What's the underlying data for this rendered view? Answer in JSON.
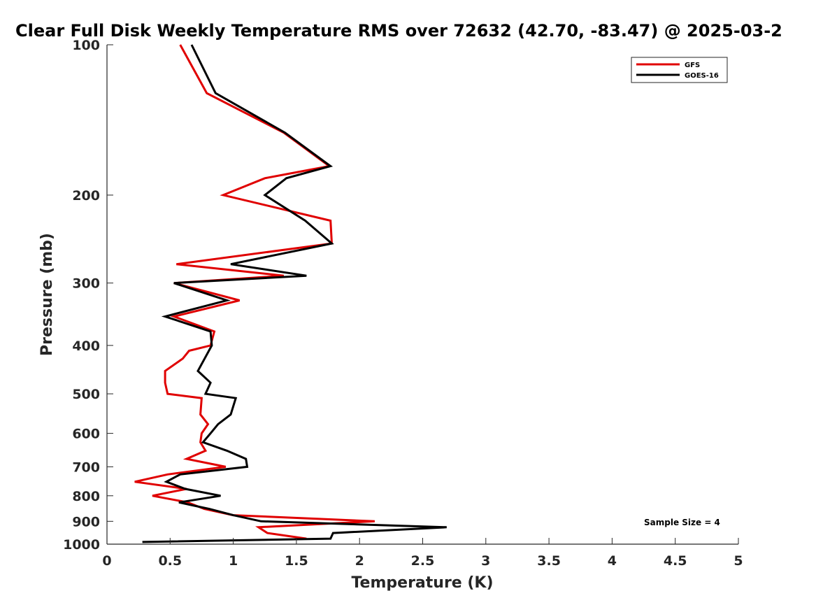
{
  "chart_data": {
    "type": "line",
    "title": "Clear Full Disk Weekly Temperature RMS over 72632 (42.70, -83.47) @ 2025-03-2",
    "xlabel": "Temperature (K)",
    "ylabel": "Pressure (mb)",
    "xlim": [
      0,
      5
    ],
    "ylim": [
      1000,
      100
    ],
    "yscale": "log",
    "x_ticks": [
      "0",
      "0.5",
      "1",
      "1.5",
      "2",
      "2.5",
      "3",
      "3.5",
      "4",
      "4.5",
      "5"
    ],
    "x_tick_values": [
      0,
      0.5,
      1,
      1.5,
      2,
      2.5,
      3,
      3.5,
      4,
      4.5,
      5
    ],
    "y_ticks": [
      "100",
      "200",
      "300",
      "400",
      "500",
      "600",
      "700",
      "800",
      "900",
      "1000"
    ],
    "y_tick_values": [
      100,
      200,
      300,
      400,
      500,
      600,
      700,
      800,
      900,
      1000
    ],
    "grid": false,
    "legend": {
      "position": "top-right"
    },
    "annotation": "Sample Size = 4",
    "series": [
      {
        "name": "GFS",
        "color": "#e00000",
        "points": [
          [
            0.58,
            100
          ],
          [
            0.79,
            125
          ],
          [
            1.4,
            150
          ],
          [
            1.76,
            175
          ],
          [
            1.25,
            185
          ],
          [
            0.92,
            200
          ],
          [
            1.77,
            225
          ],
          [
            1.78,
            250
          ],
          [
            0.55,
            275
          ],
          [
            1.4,
            290
          ],
          [
            0.53,
            300
          ],
          [
            1.05,
            325
          ],
          [
            0.53,
            350
          ],
          [
            0.85,
            375
          ],
          [
            0.82,
            400
          ],
          [
            0.65,
            410
          ],
          [
            0.6,
            425
          ],
          [
            0.46,
            450
          ],
          [
            0.46,
            475
          ],
          [
            0.48,
            500
          ],
          [
            0.75,
            510
          ],
          [
            0.74,
            550
          ],
          [
            0.8,
            575
          ],
          [
            0.75,
            600
          ],
          [
            0.74,
            625
          ],
          [
            0.78,
            650
          ],
          [
            0.63,
            675
          ],
          [
            0.94,
            700
          ],
          [
            0.48,
            725
          ],
          [
            0.22,
            750
          ],
          [
            0.63,
            775
          ],
          [
            0.36,
            800
          ],
          [
            0.64,
            825
          ],
          [
            0.77,
            850
          ],
          [
            1.0,
            875
          ],
          [
            2.12,
            900
          ],
          [
            1.2,
            925
          ],
          [
            1.27,
            950
          ],
          [
            1.58,
            975
          ]
        ]
      },
      {
        "name": "GOES-16",
        "color": "#000000",
        "points": [
          [
            0.67,
            100
          ],
          [
            0.86,
            125
          ],
          [
            1.41,
            150
          ],
          [
            1.77,
            175
          ],
          [
            1.42,
            185
          ],
          [
            1.25,
            200
          ],
          [
            1.57,
            225
          ],
          [
            1.78,
            250
          ],
          [
            0.98,
            275
          ],
          [
            1.58,
            290
          ],
          [
            0.53,
            300
          ],
          [
            0.95,
            325
          ],
          [
            0.46,
            350
          ],
          [
            0.82,
            375
          ],
          [
            0.83,
            400
          ],
          [
            0.72,
            450
          ],
          [
            0.82,
            475
          ],
          [
            0.78,
            500
          ],
          [
            1.02,
            510
          ],
          [
            0.98,
            550
          ],
          [
            0.88,
            575
          ],
          [
            0.82,
            600
          ],
          [
            0.76,
            625
          ],
          [
            0.95,
            650
          ],
          [
            1.1,
            675
          ],
          [
            1.11,
            700
          ],
          [
            0.58,
            725
          ],
          [
            0.47,
            750
          ],
          [
            0.62,
            775
          ],
          [
            0.9,
            800
          ],
          [
            0.57,
            825
          ],
          [
            0.81,
            850
          ],
          [
            1.0,
            875
          ],
          [
            1.22,
            900
          ],
          [
            2.69,
            925
          ],
          [
            1.79,
            950
          ],
          [
            1.77,
            975
          ],
          [
            0.28,
            990
          ]
        ]
      }
    ]
  }
}
